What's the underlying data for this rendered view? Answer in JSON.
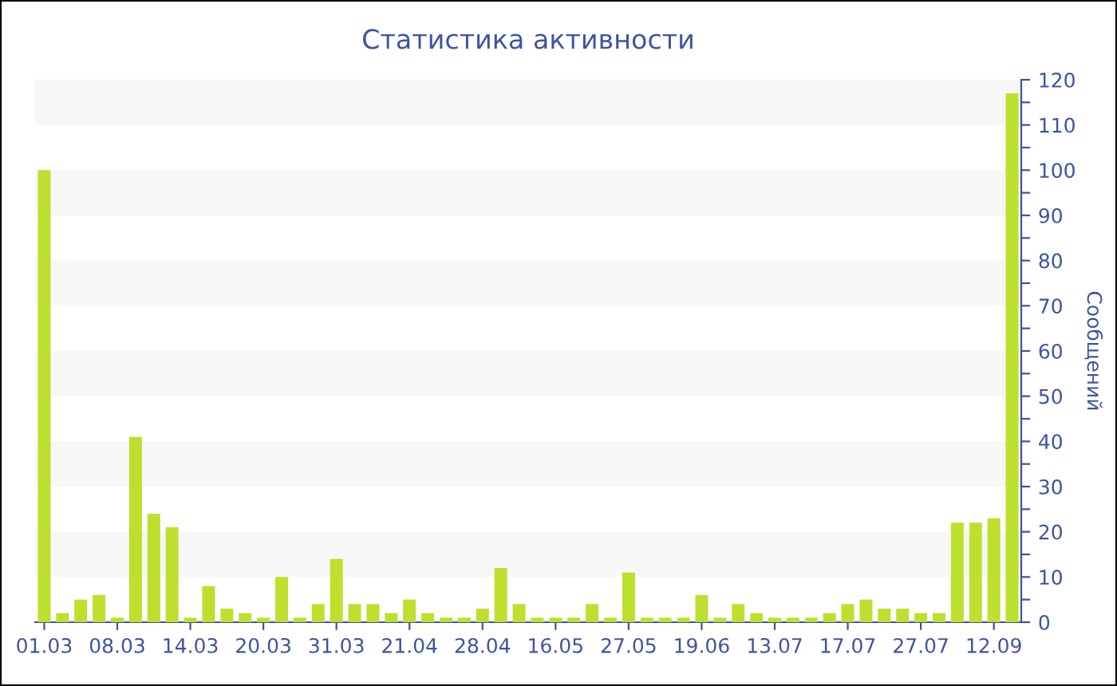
{
  "chart_data": {
    "type": "bar",
    "title": "Статистика активности",
    "ylabel": "Сообщений",
    "categories": [
      "01.03",
      null,
      null,
      null,
      "08.03",
      null,
      null,
      null,
      "14.03",
      null,
      null,
      null,
      "20.03",
      null,
      null,
      null,
      "31.03",
      null,
      null,
      null,
      "21.04",
      null,
      null,
      null,
      "28.04",
      null,
      null,
      null,
      "16.05",
      null,
      null,
      null,
      "27.05",
      null,
      null,
      null,
      "19.06",
      null,
      null,
      null,
      "13.07",
      null,
      null,
      null,
      "17.07",
      null,
      null,
      null,
      "27.07",
      null,
      null,
      null,
      "12.09",
      null
    ],
    "values": [
      100,
      2,
      5,
      6,
      1,
      41,
      24,
      21,
      1,
      8,
      3,
      2,
      1,
      10,
      1,
      4,
      14,
      4,
      4,
      2,
      5,
      2,
      1,
      1,
      3,
      12,
      4,
      1,
      1,
      1,
      4,
      1,
      11,
      1,
      1,
      1,
      6,
      1,
      4,
      2,
      1,
      1,
      1,
      2,
      4,
      5,
      3,
      3,
      2,
      2,
      22,
      22,
      23,
      117
    ],
    "color": "#bde02e",
    "ylim": [
      0,
      120
    ],
    "yticks": [
      0,
      {
        "value": 5,
        "label": null
      },
      10,
      {
        "value": 15,
        "label": null
      },
      20,
      {
        "value": 25,
        "label": null
      },
      30,
      {
        "value": 35,
        "label": null
      },
      40,
      {
        "value": 45,
        "label": null
      },
      50,
      {
        "value": 55,
        "label": null
      },
      60,
      {
        "value": 65,
        "label": null
      },
      70,
      {
        "value": 75,
        "label": null
      },
      80,
      {
        "value": 85,
        "label": null
      },
      90,
      {
        "value": 95,
        "label": null
      },
      100,
      {
        "value": 105,
        "label": null
      },
      110,
      {
        "value": 115,
        "label": null
      },
      120
    ],
    "bands": [
      {
        "axis": "y",
        "from": 10,
        "to": 20,
        "color": "#f7f7f7"
      },
      {
        "axis": "y",
        "from": 30,
        "to": 40,
        "color": "#f7f7f7"
      },
      {
        "axis": "y",
        "from": 50,
        "to": 60,
        "color": "#f7f7f7"
      },
      {
        "axis": "y",
        "from": 70,
        "to": 80,
        "color": "#f7f7f7"
      },
      {
        "axis": "y",
        "from": 90,
        "to": 100,
        "color": "#f7f7f7"
      },
      {
        "axis": "y",
        "from": 110,
        "to": 120,
        "color": "#f7f7f7"
      }
    ]
  }
}
